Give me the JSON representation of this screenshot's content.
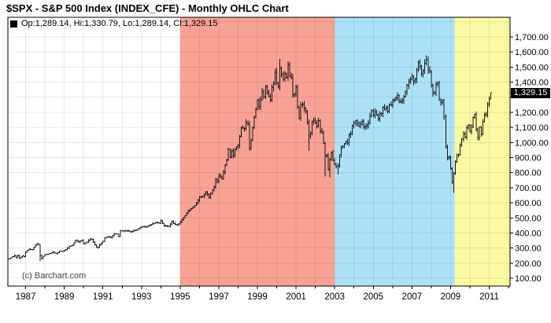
{
  "page": {
    "title": "$SPX - S&P 500 Index (INDEX_CFE) - Monthly OHLC Chart"
  },
  "legend": {
    "marker": "black-square",
    "text": "Op:1,289.14, Hi:1,330.79, Lo:1,289.14, Cl:1,329.15"
  },
  "watermark": "(c) Barchart.com",
  "last_price_badge": "1,329.15",
  "colors": {
    "background": "#FFFFFF",
    "plot_border": "#000000",
    "grid": "rgba(0,0,0,0.085)",
    "bar": "#161616",
    "badge_bg": "#000000",
    "badge_text": "#FFFFFF",
    "region_white": "#FFFFFF",
    "region_red": "#F8A294",
    "region_blue": "#ACE2F8",
    "region_yellow": "#FAFAA2",
    "axis_text": "#000000",
    "watermark_text": "#444444"
  },
  "chart_data": {
    "type": "ohlc",
    "title": "$SPX - S&P 500 Index (INDEX_CFE) - Monthly OHLC Chart",
    "xlabel": "",
    "ylabel": "",
    "legend_position": "top-left",
    "y_axis_side": "right",
    "grid": true,
    "x_ticks": [
      1987,
      1989,
      1991,
      1993,
      1995,
      1997,
      1999,
      2001,
      2003,
      2005,
      2007,
      2009,
      2011
    ],
    "y_ticks": [
      100,
      200,
      300,
      400,
      500,
      600,
      700,
      800,
      900,
      1000,
      1100,
      1200,
      1300,
      1400,
      1500,
      1600,
      1700
    ],
    "xlim": [
      1986.08,
      2012.08
    ],
    "ylim": [
      48,
      1830
    ],
    "t_start": 1986.08,
    "t_end": 2011.09,
    "last_close": 1329.15,
    "ohlc_current": {
      "open": 1289.14,
      "high": 1330.79,
      "low": 1289.14,
      "close": 1329.15
    },
    "regions": [
      {
        "name": "white-1986-1995",
        "start": 1986.08,
        "end": 1995.0,
        "color": "#FFFFFF"
      },
      {
        "name": "red-1995-2003",
        "start": 1995.0,
        "end": 2003.0,
        "color": "#F8A294"
      },
      {
        "name": "blue-2003-2009",
        "start": 2003.0,
        "end": 2009.21,
        "color": "#ACE2F8"
      },
      {
        "name": "yellow-2009-2012",
        "start": 2009.21,
        "end": 2012.08,
        "color": "#FAFAA2"
      }
    ],
    "monthly_close_anchors": [
      [
        1986.08,
        227
      ],
      [
        1986.25,
        236
      ],
      [
        1986.42,
        251
      ],
      [
        1986.5,
        236
      ],
      [
        1986.58,
        253
      ],
      [
        1986.67,
        231
      ],
      [
        1986.83,
        249
      ],
      [
        1986.92,
        242
      ],
      [
        1987.0,
        274
      ],
      [
        1987.08,
        284
      ],
      [
        1987.17,
        292
      ],
      [
        1987.33,
        290
      ],
      [
        1987.42,
        304
      ],
      [
        1987.5,
        319
      ],
      [
        1987.58,
        330
      ],
      [
        1987.67,
        322
      ],
      [
        1987.75,
        252
      ],
      [
        1987.83,
        230
      ],
      [
        1987.92,
        247
      ],
      [
        1988.0,
        257
      ],
      [
        1988.17,
        259
      ],
      [
        1988.42,
        274
      ],
      [
        1988.58,
        262
      ],
      [
        1988.75,
        279
      ],
      [
        1988.92,
        278
      ],
      [
        1989.08,
        289
      ],
      [
        1989.25,
        310
      ],
      [
        1989.42,
        318
      ],
      [
        1989.58,
        351
      ],
      [
        1989.75,
        340
      ],
      [
        1989.92,
        353
      ],
      [
        1990.0,
        329
      ],
      [
        1990.17,
        340
      ],
      [
        1990.33,
        361
      ],
      [
        1990.42,
        358
      ],
      [
        1990.58,
        323
      ],
      [
        1990.67,
        306
      ],
      [
        1990.75,
        304
      ],
      [
        1990.83,
        322
      ],
      [
        1990.92,
        330
      ],
      [
        1991.0,
        344
      ],
      [
        1991.08,
        367
      ],
      [
        1991.25,
        375
      ],
      [
        1991.42,
        371
      ],
      [
        1991.58,
        395
      ],
      [
        1991.75,
        392
      ],
      [
        1991.83,
        375
      ],
      [
        1991.92,
        417
      ],
      [
        1992.08,
        413
      ],
      [
        1992.25,
        415
      ],
      [
        1992.42,
        408
      ],
      [
        1992.67,
        418
      ],
      [
        1992.75,
        419
      ],
      [
        1992.92,
        436
      ],
      [
        1993.08,
        443
      ],
      [
        1993.25,
        440
      ],
      [
        1993.42,
        451
      ],
      [
        1993.58,
        464
      ],
      [
        1993.75,
        468
      ],
      [
        1993.92,
        466
      ],
      [
        1994.0,
        482
      ],
      [
        1994.17,
        446
      ],
      [
        1994.42,
        444
      ],
      [
        1994.58,
        475
      ],
      [
        1994.67,
        463
      ],
      [
        1994.83,
        453
      ],
      [
        1994.92,
        459
      ],
      [
        1995.08,
        487
      ],
      [
        1995.25,
        515
      ],
      [
        1995.42,
        545
      ],
      [
        1995.58,
        562
      ],
      [
        1995.75,
        582
      ],
      [
        1995.92,
        616
      ],
      [
        1996.0,
        636
      ],
      [
        1996.17,
        645
      ],
      [
        1996.33,
        669
      ],
      [
        1996.5,
        640
      ],
      [
        1996.67,
        687
      ],
      [
        1996.75,
        705
      ],
      [
        1996.83,
        757
      ],
      [
        1996.92,
        741
      ],
      [
        1997.0,
        786
      ],
      [
        1997.17,
        757
      ],
      [
        1997.33,
        848
      ],
      [
        1997.42,
        885
      ],
      [
        1997.5,
        954
      ],
      [
        1997.58,
        899
      ],
      [
        1997.67,
        947
      ],
      [
        1997.75,
        914
      ],
      [
        1997.83,
        955
      ],
      [
        1997.92,
        970
      ],
      [
        1998.0,
        980
      ],
      [
        1998.17,
        1101
      ],
      [
        1998.33,
        1091
      ],
      [
        1998.42,
        1134
      ],
      [
        1998.5,
        1121
      ],
      [
        1998.58,
        957
      ],
      [
        1998.67,
        1017
      ],
      [
        1998.75,
        1099
      ],
      [
        1998.83,
        1164
      ],
      [
        1998.92,
        1229
      ],
      [
        1999.0,
        1280
      ],
      [
        1999.08,
        1238
      ],
      [
        1999.17,
        1286
      ],
      [
        1999.25,
        1335
      ],
      [
        1999.33,
        1302
      ],
      [
        1999.42,
        1373
      ],
      [
        1999.5,
        1329
      ],
      [
        1999.67,
        1283
      ],
      [
        1999.75,
        1363
      ],
      [
        1999.83,
        1389
      ],
      [
        1999.92,
        1469
      ],
      [
        2000.0,
        1394
      ],
      [
        2000.08,
        1366
      ],
      [
        2000.17,
        1499
      ],
      [
        2000.25,
        1452
      ],
      [
        2000.33,
        1421
      ],
      [
        2000.42,
        1455
      ],
      [
        2000.5,
        1431
      ],
      [
        2000.58,
        1518
      ],
      [
        2000.67,
        1437
      ],
      [
        2000.75,
        1429
      ],
      [
        2000.83,
        1315
      ],
      [
        2000.92,
        1320
      ],
      [
        2001.0,
        1366
      ],
      [
        2001.08,
        1240
      ],
      [
        2001.17,
        1160
      ],
      [
        2001.25,
        1249
      ],
      [
        2001.33,
        1256
      ],
      [
        2001.42,
        1224
      ],
      [
        2001.5,
        1211
      ],
      [
        2001.58,
        1134
      ],
      [
        2001.67,
        1041
      ],
      [
        2001.75,
        1060
      ],
      [
        2001.83,
        1139
      ],
      [
        2001.92,
        1148
      ],
      [
        2002.0,
        1130
      ],
      [
        2002.08,
        1107
      ],
      [
        2002.17,
        1147
      ],
      [
        2002.25,
        1077
      ],
      [
        2002.33,
        1067
      ],
      [
        2002.42,
        990
      ],
      [
        2002.5,
        912
      ],
      [
        2002.58,
        916
      ],
      [
        2002.67,
        815
      ],
      [
        2002.75,
        886
      ],
      [
        2002.83,
        936
      ],
      [
        2002.92,
        880
      ],
      [
        2003.0,
        856
      ],
      [
        2003.08,
        841
      ],
      [
        2003.17,
        848
      ],
      [
        2003.25,
        917
      ],
      [
        2003.33,
        964
      ],
      [
        2003.42,
        975
      ],
      [
        2003.5,
        990
      ],
      [
        2003.58,
        1008
      ],
      [
        2003.67,
        996
      ],
      [
        2003.75,
        1051
      ],
      [
        2003.83,
        1058
      ],
      [
        2003.92,
        1112
      ],
      [
        2004.0,
        1131
      ],
      [
        2004.08,
        1145
      ],
      [
        2004.17,
        1126
      ],
      [
        2004.25,
        1107
      ],
      [
        2004.33,
        1121
      ],
      [
        2004.42,
        1141
      ],
      [
        2004.5,
        1102
      ],
      [
        2004.58,
        1104
      ],
      [
        2004.67,
        1115
      ],
      [
        2004.75,
        1130
      ],
      [
        2004.83,
        1174
      ],
      [
        2004.92,
        1212
      ],
      [
        2005.0,
        1181
      ],
      [
        2005.08,
        1204
      ],
      [
        2005.17,
        1181
      ],
      [
        2005.25,
        1157
      ],
      [
        2005.33,
        1192
      ],
      [
        2005.42,
        1191
      ],
      [
        2005.5,
        1234
      ],
      [
        2005.58,
        1220
      ],
      [
        2005.67,
        1229
      ],
      [
        2005.75,
        1207
      ],
      [
        2005.83,
        1249
      ],
      [
        2005.92,
        1248
      ],
      [
        2006.0,
        1280
      ],
      [
        2006.08,
        1281
      ],
      [
        2006.17,
        1295
      ],
      [
        2006.25,
        1311
      ],
      [
        2006.33,
        1270
      ],
      [
        2006.42,
        1270
      ],
      [
        2006.5,
        1277
      ],
      [
        2006.58,
        1304
      ],
      [
        2006.67,
        1336
      ],
      [
        2006.75,
        1378
      ],
      [
        2006.83,
        1401
      ],
      [
        2006.92,
        1418
      ],
      [
        2007.0,
        1438
      ],
      [
        2007.08,
        1407
      ],
      [
        2007.17,
        1421
      ],
      [
        2007.25,
        1482
      ],
      [
        2007.33,
        1531
      ],
      [
        2007.42,
        1503
      ],
      [
        2007.5,
        1455
      ],
      [
        2007.58,
        1474
      ],
      [
        2007.67,
        1527
      ],
      [
        2007.75,
        1549
      ],
      [
        2007.83,
        1481
      ],
      [
        2007.92,
        1468
      ],
      [
        2008.0,
        1378
      ],
      [
        2008.08,
        1331
      ],
      [
        2008.17,
        1323
      ],
      [
        2008.25,
        1386
      ],
      [
        2008.33,
        1400
      ],
      [
        2008.42,
        1280
      ],
      [
        2008.5,
        1267
      ],
      [
        2008.58,
        1283
      ],
      [
        2008.67,
        1166
      ],
      [
        2008.75,
        969
      ],
      [
        2008.83,
        896
      ],
      [
        2008.92,
        903
      ],
      [
        2009.0,
        826
      ],
      [
        2009.08,
        735
      ],
      [
        2009.17,
        798
      ],
      [
        2009.25,
        873
      ],
      [
        2009.33,
        919
      ],
      [
        2009.42,
        919
      ],
      [
        2009.5,
        987
      ],
      [
        2009.58,
        1021
      ],
      [
        2009.67,
        1057
      ],
      [
        2009.75,
        1036
      ],
      [
        2009.83,
        1096
      ],
      [
        2009.92,
        1115
      ],
      [
        2010.0,
        1074
      ],
      [
        2010.08,
        1104
      ],
      [
        2010.17,
        1169
      ],
      [
        2010.25,
        1187
      ],
      [
        2010.33,
        1089
      ],
      [
        2010.42,
        1031
      ],
      [
        2010.5,
        1102
      ],
      [
        2010.58,
        1049
      ],
      [
        2010.67,
        1141
      ],
      [
        2010.75,
        1183
      ],
      [
        2010.83,
        1181
      ],
      [
        2010.92,
        1258
      ],
      [
        2011.0,
        1289.14
      ],
      [
        2011.08,
        1329.15
      ]
    ],
    "high_overrides": [
      [
        2000.17,
        1553
      ],
      [
        2007.75,
        1576
      ],
      [
        2011.08,
        1330.79
      ]
    ],
    "low_overrides": [
      [
        1987.75,
        216
      ],
      [
        1990.75,
        295
      ],
      [
        2001.67,
        945
      ],
      [
        2002.5,
        776
      ],
      [
        2002.75,
        769
      ],
      [
        2003.17,
        789
      ],
      [
        2009.17,
        666
      ],
      [
        2010.5,
        1011
      ],
      [
        2011.08,
        1289.14
      ]
    ]
  }
}
